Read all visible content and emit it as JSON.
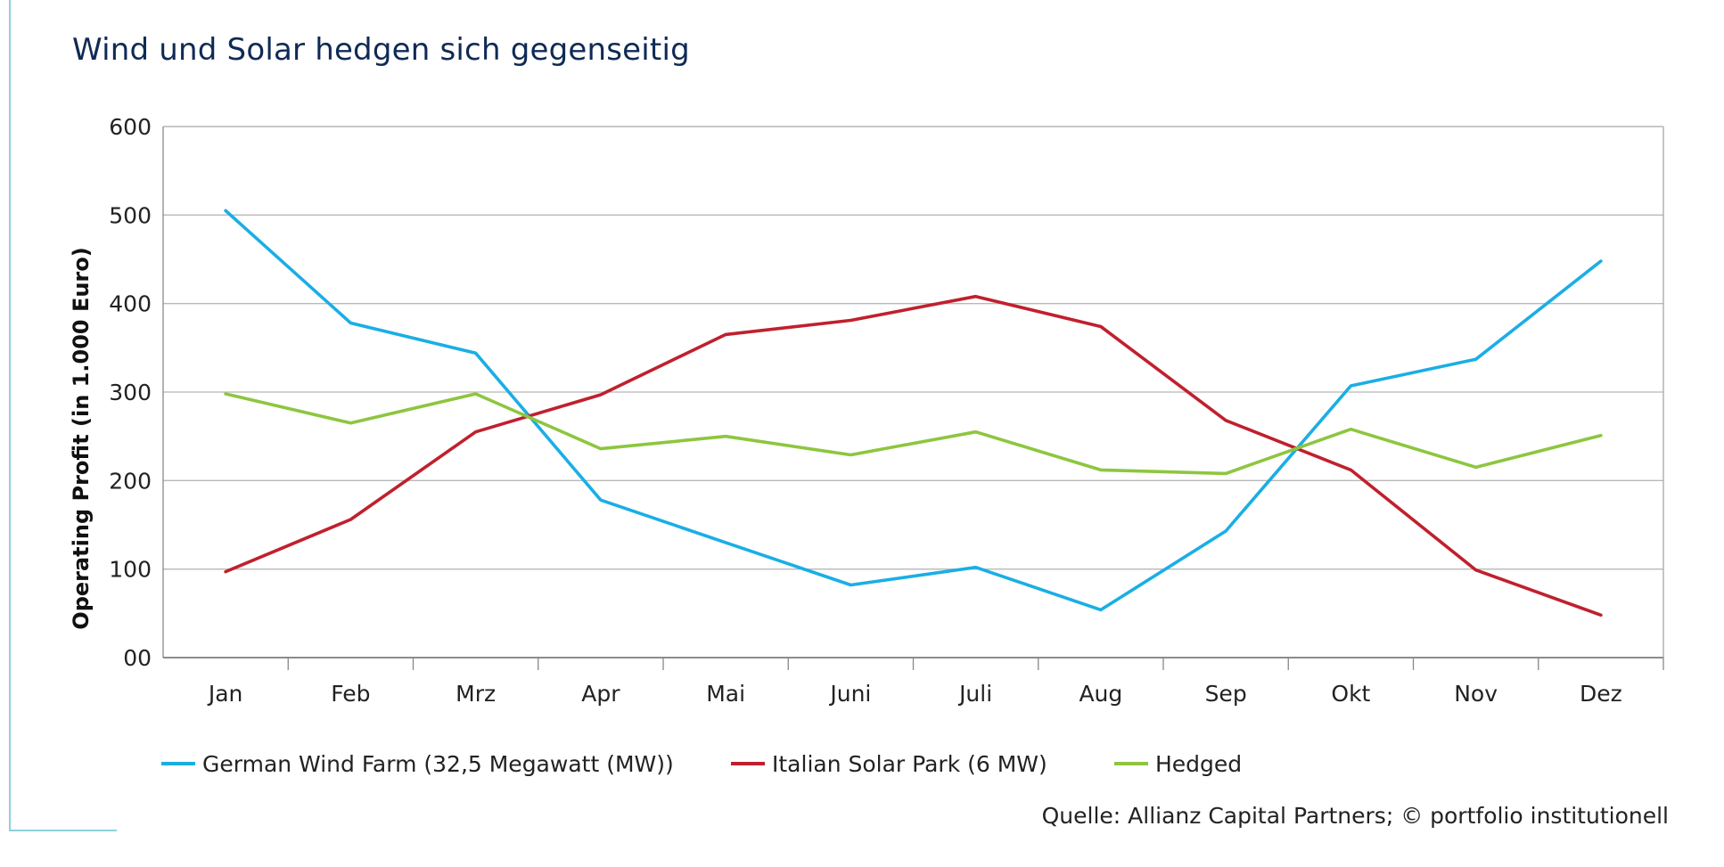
{
  "title": "Wind und Solar hedgen sich gegenseitig",
  "source": "Quelle: Allianz Capital Partners; © portfolio institutionell",
  "chart_data": {
    "type": "line",
    "title": "Wind und Solar hedgen sich gegenseitig",
    "xlabel": "",
    "ylabel": "Operating Profit (in 1.000 Euro)",
    "ylim": [
      0,
      600
    ],
    "yticks": [
      "00",
      "100",
      "200",
      "300",
      "400",
      "500",
      "600"
    ],
    "grid": true,
    "legend_position": "bottom",
    "categories": [
      "Jan",
      "Feb",
      "Mrz",
      "Apr",
      "Mai",
      "Juni",
      "Juli",
      "Aug",
      "Sep",
      "Okt",
      "Nov",
      "Dez"
    ],
    "series": [
      {
        "name": "German Wind Farm (32,5 Megawatt (MW))",
        "color": "#1aaee5",
        "values": [
          505,
          378,
          344,
          178,
          130,
          82,
          102,
          54,
          143,
          307,
          337,
          448
        ]
      },
      {
        "name": "Italian Solar Park (6 MW)",
        "color": "#c0202e",
        "values": [
          97,
          156,
          255,
          297,
          365,
          381,
          408,
          374,
          268,
          212,
          99,
          48
        ]
      },
      {
        "name": "Hedged",
        "color": "#8dc63f",
        "values": [
          298,
          265,
          298,
          236,
          250,
          229,
          255,
          212,
          208,
          258,
          215,
          251
        ]
      }
    ]
  }
}
